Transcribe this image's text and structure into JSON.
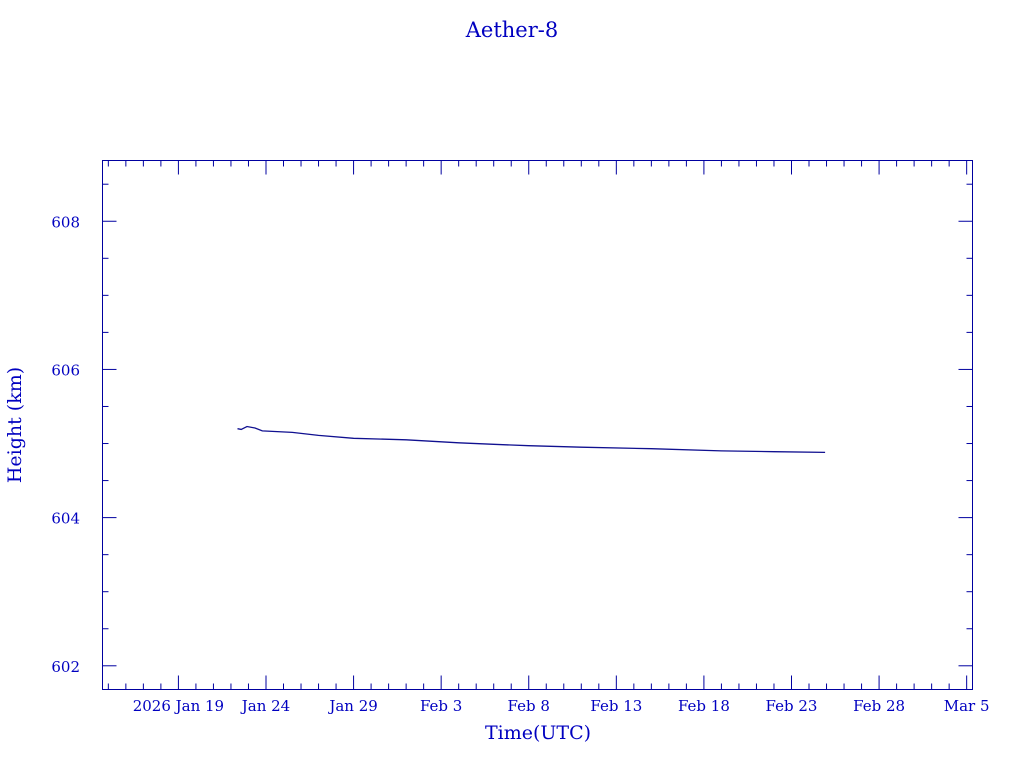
{
  "chart_data": {
    "type": "line",
    "title": "Aether-8",
    "xlabel": "Time(UTC)",
    "ylabel": "Height (km)",
    "xlim": [
      "2026-01-14T16:00",
      "2026-03-05T08:00"
    ],
    "ylim": [
      601.68,
      608.82
    ],
    "x_ticks": [
      {
        "date": "2026-01-19",
        "label": "2026 Jan 19"
      },
      {
        "date": "2026-01-24",
        "label": "Jan 24"
      },
      {
        "date": "2026-01-29",
        "label": "Jan 29"
      },
      {
        "date": "2026-02-03",
        "label": "Feb  3"
      },
      {
        "date": "2026-02-08",
        "label": "Feb  8"
      },
      {
        "date": "2026-02-13",
        "label": "Feb 13"
      },
      {
        "date": "2026-02-18",
        "label": "Feb 18"
      },
      {
        "date": "2026-02-23",
        "label": "Feb 23"
      },
      {
        "date": "2026-02-28",
        "label": "Feb 28"
      },
      {
        "date": "2026-03-05",
        "label": "Mar  5"
      }
    ],
    "y_ticks": [
      602,
      604,
      606,
      608
    ],
    "grid": false,
    "colors": {
      "axes": "#0000a0",
      "text": "#0000c0",
      "line": "#101090"
    },
    "series": [
      {
        "x": [
          "2026-01-22T09:00",
          "2026-01-22T14:00",
          "2026-01-22T22:00",
          "2026-01-23T09:00",
          "2026-01-23T19:00",
          "2026-01-25T12:00",
          "2026-01-27T00:00",
          "2026-01-29T00:00",
          "2026-02-01T00:00",
          "2026-02-04T00:00",
          "2026-02-06T00:00",
          "2026-02-08T00:00",
          "2026-02-11T00:00",
          "2026-02-15T00:00",
          "2026-02-19T00:00",
          "2026-02-22T00:00",
          "2026-02-24T22:00"
        ],
        "y": [
          605.2,
          605.19,
          605.23,
          605.21,
          605.17,
          605.15,
          605.11,
          605.07,
          605.05,
          605.01,
          604.99,
          604.97,
          604.95,
          604.93,
          604.9,
          604.89,
          604.88
        ]
      }
    ]
  }
}
